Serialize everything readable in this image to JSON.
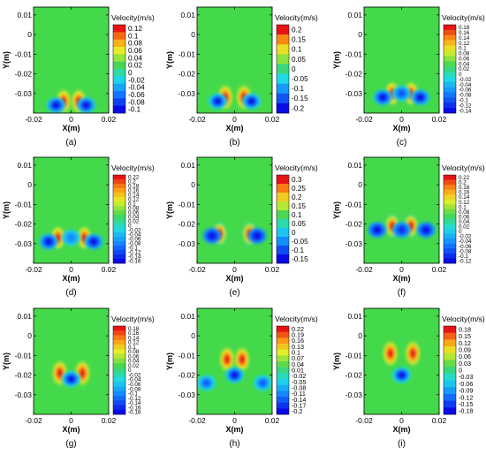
{
  "chart_data": [
    {
      "type": "heatmap",
      "panel_label": "(a)",
      "xlabel": "X(m)",
      "ylabel": "Y(m)",
      "x_ticks": [
        "-0.02",
        "0",
        "0.02"
      ],
      "y_ticks": [
        "0.01",
        "0",
        "-0.01",
        "-0.02",
        "-0.03"
      ],
      "xlim": [
        -0.02,
        0.02
      ],
      "ylim": [
        -0.04,
        0.014
      ],
      "colorbar": {
        "title": "Velocity(m/s)",
        "labels": [
          "0.12",
          "0.1",
          "0.08",
          "0.06",
          "0.04",
          "0.02",
          "0",
          "-0.02",
          "-0.04",
          "-0.06",
          "-0.08",
          "-0.1"
        ]
      },
      "features": [
        {
          "x": -0.004,
          "y": -0.034,
          "value": 0.12
        },
        {
          "x": 0.004,
          "y": -0.034,
          "value": 0.12
        },
        {
          "x": -0.008,
          "y": -0.036,
          "value": -0.1
        },
        {
          "x": 0.008,
          "y": -0.036,
          "value": -0.1
        }
      ]
    },
    {
      "type": "heatmap",
      "panel_label": "(b)",
      "xlabel": "X(m)",
      "ylabel": "Y(m)",
      "x_ticks": [
        "-0.02",
        "0",
        "0.02"
      ],
      "y_ticks": [
        "0.01",
        "0",
        "-0.01",
        "-0.02",
        "-0.03"
      ],
      "xlim": [
        -0.02,
        0.02
      ],
      "ylim": [
        -0.04,
        0.014
      ],
      "colorbar": {
        "title": "Velocity(m/s)",
        "labels": [
          "0.2",
          "0.15",
          "0.1",
          "0.05",
          "0",
          "-0.05",
          "-0.1",
          "-0.15",
          "-0.2"
        ]
      },
      "features": [
        {
          "x": -0.005,
          "y": -0.032,
          "value": 0.2
        },
        {
          "x": 0.005,
          "y": -0.032,
          "value": 0.2
        },
        {
          "x": -0.009,
          "y": -0.034,
          "value": -0.2
        },
        {
          "x": 0.009,
          "y": -0.034,
          "value": -0.2
        }
      ]
    },
    {
      "type": "heatmap",
      "panel_label": "(c)",
      "xlabel": "X(m)",
      "ylabel": "Y(m)",
      "x_ticks": [
        "-0.02",
        "0",
        "0.02"
      ],
      "y_ticks": [
        "0.01",
        "0",
        "-0.01",
        "-0.02",
        "-0.03"
      ],
      "xlim": [
        -0.02,
        0.02
      ],
      "ylim": [
        -0.04,
        0.014
      ],
      "colorbar": {
        "title": "Velocity(m/s)",
        "labels": [
          "0.18",
          "0.16",
          "0.14",
          "0.12",
          "0.1",
          "0.08",
          "0.06",
          "0.04",
          "0.02",
          "0",
          "-0.02",
          "-0.04",
          "-0.06",
          "-0.08",
          "-0.1",
          "-0.12",
          "-0.14"
        ]
      },
      "features": [
        {
          "x": -0.005,
          "y": -0.03,
          "value": 0.18
        },
        {
          "x": 0.005,
          "y": -0.03,
          "value": 0.18
        },
        {
          "x": -0.01,
          "y": -0.032,
          "value": -0.14
        },
        {
          "x": 0.01,
          "y": -0.032,
          "value": -0.14
        },
        {
          "x": 0.0,
          "y": -0.03,
          "value": -0.1
        }
      ]
    },
    {
      "type": "heatmap",
      "panel_label": "(d)",
      "xlabel": "X(m)",
      "ylabel": "Y(m)",
      "x_ticks": [
        "-0.02",
        "0",
        "0.02"
      ],
      "y_ticks": [
        "0.01",
        "0",
        "-0.01",
        "-0.02",
        "-0.03"
      ],
      "xlim": [
        -0.02,
        0.02
      ],
      "ylim": [
        -0.04,
        0.014
      ],
      "colorbar": {
        "title": "Velocity(m/s)",
        "labels": [
          "0.22",
          "0.2",
          "0.18",
          "0.16",
          "0.14",
          "0.12",
          "0.1",
          "0.08",
          "0.06",
          "0.04",
          "0.02",
          "0",
          "-0.02",
          "-0.04",
          "-0.06",
          "-0.08",
          "-0.1",
          "-0.12",
          "-0.14",
          "-0.16"
        ]
      },
      "features": [
        {
          "x": -0.007,
          "y": -0.027,
          "value": 0.22
        },
        {
          "x": 0.007,
          "y": -0.027,
          "value": 0.22
        },
        {
          "x": -0.012,
          "y": -0.029,
          "value": -0.16
        },
        {
          "x": 0.012,
          "y": -0.029,
          "value": -0.16
        },
        {
          "x": 0.0,
          "y": -0.027,
          "value": -0.08
        }
      ]
    },
    {
      "type": "heatmap",
      "panel_label": "(e)",
      "xlabel": "X(m)",
      "ylabel": "Y(m)",
      "x_ticks": [
        "-0.02",
        "0",
        "0.02"
      ],
      "y_ticks": [
        "0.01",
        "0",
        "-0.01",
        "-0.02",
        "-0.03"
      ],
      "xlim": [
        -0.02,
        0.02
      ],
      "ylim": [
        -0.04,
        0.014
      ],
      "colorbar": {
        "title": "Velocity(m/s)",
        "labels": [
          "0.3",
          "0.25",
          "0.2",
          "0.15",
          "0.1",
          "0.05",
          "0",
          "-0.05",
          "-0.1",
          "-0.15"
        ]
      },
      "features": [
        {
          "x": -0.008,
          "y": -0.025,
          "value": 0.3
        },
        {
          "x": 0.008,
          "y": -0.025,
          "value": 0.3
        },
        {
          "x": -0.012,
          "y": -0.026,
          "value": -0.15
        },
        {
          "x": 0.012,
          "y": -0.026,
          "value": -0.15
        }
      ]
    },
    {
      "type": "heatmap",
      "panel_label": "(f)",
      "xlabel": "X(m)",
      "ylabel": "Y(m)",
      "x_ticks": [
        "-0.02",
        "0",
        "0.02"
      ],
      "y_ticks": [
        "0.01",
        "0",
        "-0.01",
        "-0.02",
        "-0.03"
      ],
      "xlim": [
        -0.02,
        0.02
      ],
      "ylim": [
        -0.04,
        0.014
      ],
      "colorbar": {
        "title": "Velocity(m/s)",
        "labels": [
          "0.22",
          "0.2",
          "0.18",
          "0.16",
          "0.14",
          "0.12",
          "0.1",
          "0.08",
          "0.06",
          "0.04",
          "0.02",
          "0",
          "-0.02",
          "-0.04",
          "-0.06",
          "-0.08",
          "-0.1",
          "-0.12"
        ]
      },
      "features": [
        {
          "x": -0.005,
          "y": -0.021,
          "value": 0.22
        },
        {
          "x": 0.005,
          "y": -0.021,
          "value": 0.22
        },
        {
          "x": -0.013,
          "y": -0.023,
          "value": -0.12
        },
        {
          "x": 0.013,
          "y": -0.023,
          "value": -0.12
        },
        {
          "x": 0.0,
          "y": -0.023,
          "value": -0.1
        }
      ]
    },
    {
      "type": "heatmap",
      "panel_label": "(g)",
      "xlabel": "X(m)",
      "ylabel": "Y(m)",
      "x_ticks": [
        "-0.02",
        "0",
        "0.02"
      ],
      "y_ticks": [
        "0.01",
        "0",
        "-0.01",
        "-0.02",
        "-0.03"
      ],
      "xlim": [
        -0.02,
        0.02
      ],
      "ylim": [
        -0.04,
        0.014
      ],
      "colorbar": {
        "title": "Velocity(m/s)",
        "labels": [
          "0.18",
          "0.16",
          "0.14",
          "0.12",
          "0.1",
          "0.08",
          "0.06",
          "0.04",
          "0.02",
          "0",
          "-0.02",
          "-0.04",
          "-0.06",
          "-0.08",
          "-0.1",
          "-0.12",
          "-0.14",
          "-0.16",
          "-0.18"
        ]
      },
      "features": [
        {
          "x": -0.006,
          "y": -0.019,
          "value": 0.18
        },
        {
          "x": 0.006,
          "y": -0.019,
          "value": 0.18
        },
        {
          "x": 0.0,
          "y": -0.022,
          "value": -0.18
        }
      ]
    },
    {
      "type": "heatmap",
      "panel_label": "(h)",
      "xlabel": "X(m)",
      "ylabel": "Y(m)",
      "x_ticks": [
        "-0.02",
        "0",
        "0.02"
      ],
      "y_ticks": [
        "0.01",
        "0",
        "-0.01",
        "-0.02",
        "-0.03"
      ],
      "xlim": [
        -0.02,
        0.02
      ],
      "ylim": [
        -0.04,
        0.014
      ],
      "colorbar": {
        "title": "Velocity(m/s)",
        "labels": [
          "0.22",
          "0.19",
          "0.16",
          "0.13",
          "0.1",
          "0.07",
          "0.04",
          "0.01",
          "-0.02",
          "-0.05",
          "-0.08",
          "-0.11",
          "-0.14",
          "-0.17",
          "-0.2"
        ]
      },
      "features": [
        {
          "x": -0.004,
          "y": -0.012,
          "value": 0.22
        },
        {
          "x": 0.004,
          "y": -0.012,
          "value": 0.22
        },
        {
          "x": 0.0,
          "y": -0.02,
          "value": -0.2
        },
        {
          "x": -0.015,
          "y": -0.024,
          "value": -0.14
        },
        {
          "x": 0.015,
          "y": -0.024,
          "value": -0.14
        }
      ]
    },
    {
      "type": "heatmap",
      "panel_label": "(i)",
      "xlabel": "X(m)",
      "ylabel": "Y(m)",
      "x_ticks": [
        "-0.02",
        "0",
        "0.02"
      ],
      "y_ticks": [
        "0.01",
        "0",
        "-0.01",
        "-0.02",
        "-0.03"
      ],
      "xlim": [
        -0.02,
        0.02
      ],
      "ylim": [
        -0.04,
        0.014
      ],
      "colorbar": {
        "title": "Velocity(m/s)",
        "labels": [
          "0.18",
          "0.15",
          "0.12",
          "0.09",
          "0.06",
          "0.03",
          "0",
          "-0.03",
          "-0.06",
          "-0.09",
          "-0.12",
          "-0.15",
          "-0.18"
        ]
      },
      "features": [
        {
          "x": -0.006,
          "y": -0.009,
          "value": 0.18
        },
        {
          "x": 0.006,
          "y": -0.009,
          "value": 0.18
        },
        {
          "x": 0.0,
          "y": -0.02,
          "value": -0.18
        }
      ]
    }
  ]
}
